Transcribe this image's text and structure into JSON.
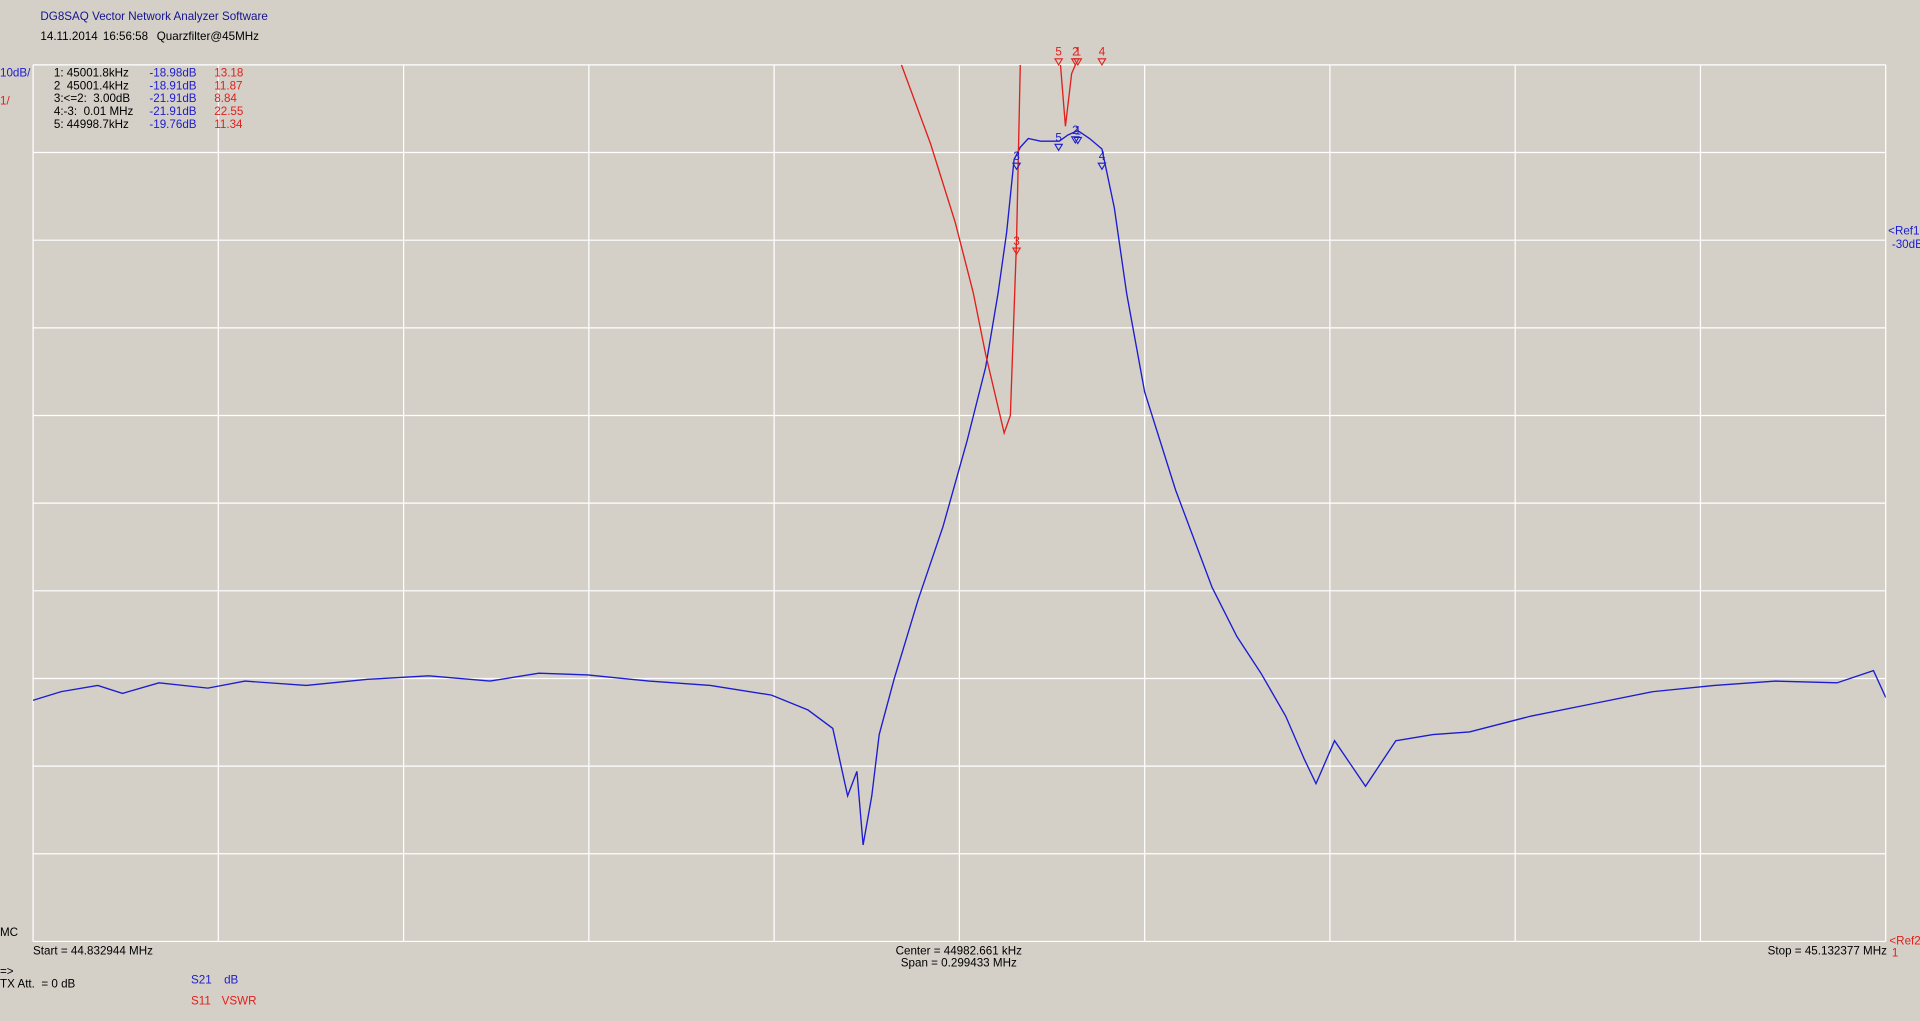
{
  "header": {
    "app_title": "DG8SAQ Vector Network Analyzer Software",
    "date": "14.11.2014",
    "time": "16:56:58",
    "name": "Quarzfilter@45MHz"
  },
  "chart_data": {
    "type": "line",
    "scale_labels": {
      "s21": "10dB/",
      "s11": "1/"
    },
    "ref1": {
      "label": "<Ref1",
      "value_label": "-30dB",
      "value": -30
    },
    "ref2": {
      "label": "<Ref2",
      "value_label": "1",
      "value": 1
    },
    "mc": "MC",
    "start_label": "Start = 44.832944 MHz",
    "center_label": "Center = 44982.661 kHz",
    "span_label": "Span = 0.299433 MHz",
    "stop_label": "Stop = 45.132377 MHz",
    "tx_arrow": "=>",
    "tx_att": "TX Att.  = 0 dB",
    "xlim": [
      44.832944,
      45.132377
    ],
    "xticks": [
      44.832944,
      44.862887,
      44.892831,
      44.922774,
      44.952717,
      44.982661,
      45.012604,
      45.042547,
      45.07249,
      45.102434,
      45.132377
    ],
    "ylim": [
      -110,
      -10
    ],
    "yticks": [
      -10,
      -20,
      -30,
      -40,
      -50,
      -60,
      -70,
      -80,
      -90,
      -100,
      -110
    ],
    "y2lim": [
      1,
      11
    ],
    "grid": true,
    "series": [
      {
        "name": "S21",
        "unit": "dB",
        "color": "#1c1cd0",
        "x": [
          44.8329,
          44.8375,
          44.8434,
          44.8474,
          44.8533,
          44.8612,
          44.8672,
          44.8771,
          44.887,
          44.8969,
          44.9068,
          44.9147,
          44.9226,
          44.9325,
          44.9424,
          44.9523,
          44.9582,
          44.9622,
          44.9646,
          44.9661,
          44.9671,
          44.9685,
          44.9697,
          44.9721,
          44.976,
          44.98,
          44.9839,
          44.9869,
          44.9889,
          44.9903,
          44.9915,
          44.9925,
          44.9938,
          44.9958,
          44.9988,
          45.0002,
          45.0018,
          45.0037,
          45.0057,
          45.0077,
          45.0097,
          45.0126,
          45.0176,
          45.0235,
          45.0275,
          45.0314,
          45.0354,
          45.0384,
          45.0403,
          45.0433,
          45.0483,
          45.0532,
          45.0592,
          45.0651,
          45.075,
          45.0849,
          45.0948,
          45.1047,
          45.1146,
          45.1245,
          45.1304,
          45.1324
        ],
        "values": [
          -82.5,
          -81.5,
          -80.8,
          -81.7,
          -80.5,
          -81.1,
          -80.3,
          -80.8,
          -80.1,
          -79.7,
          -80.3,
          -79.4,
          -79.6,
          -80.3,
          -80.8,
          -81.9,
          -83.6,
          -85.7,
          -93.4,
          -90.6,
          -99.0,
          -93.4,
          -86.4,
          -80.1,
          -71.0,
          -62.7,
          -52.9,
          -44.5,
          -36.1,
          -29.1,
          -20.8,
          -19.4,
          -18.4,
          -18.7,
          -18.7,
          -18.0,
          -17.5,
          -18.4,
          -19.6,
          -26.3,
          -36.1,
          -47.3,
          -58.5,
          -69.6,
          -75.2,
          -79.4,
          -84.3,
          -89.2,
          -92.0,
          -87.1,
          -92.3,
          -87.1,
          -86.4,
          -86.1,
          -84.3,
          -82.9,
          -81.5,
          -80.8,
          -80.3,
          -80.5,
          -79.1,
          -82.2
        ]
      },
      {
        "name": "S11",
        "unit": "VSWR",
        "color": "#e0201c",
        "axis": "y2",
        "x": [
          44.9733,
          44.978,
          44.982,
          44.9849,
          44.9869,
          44.9889,
          44.9899,
          44.9909,
          44.9919,
          44.9925,
          44.9958,
          44.999,
          44.9998,
          45.0008,
          45.0014
        ],
        "values": [
          11,
          10.1,
          9.2,
          8.4,
          7.7,
          7.1,
          6.8,
          7.0,
          9.0,
          11,
          null,
          11,
          10.3,
          10.9,
          11
        ]
      }
    ],
    "markers": [
      {
        "label": "1",
        "x": 45.0018,
        "s21": -18.98,
        "s11": 13.18
      },
      {
        "label": "2",
        "x": 45.0014,
        "s21": -18.91,
        "s11": 11.87
      },
      {
        "label": "3",
        "x": 44.9919,
        "s21": -21.91,
        "s11": 8.84
      },
      {
        "label": "4",
        "x": 45.0057,
        "s21": -21.91,
        "s11": 22.55
      },
      {
        "label": "5",
        "x": 44.9987,
        "s21": -19.76,
        "s11": 11.34
      }
    ],
    "marker_table": [
      {
        "freq": "1: 45001.8kHz",
        "s21": "-18.98dB",
        "s11": "13.18"
      },
      {
        "freq": "2  45001.4kHz",
        "s21": "-18.91dB",
        "s11": "11.87"
      },
      {
        "freq": "3:<=2:  3.00dB",
        "s21": "-21.91dB",
        "s11": "8.84"
      },
      {
        "freq": "4:-3:  0.01 MHz",
        "s21": "-21.91dB",
        "s11": "22.55"
      },
      {
        "freq": "5: 44998.7kHz",
        "s21": "-19.76dB",
        "s11": "11.34"
      }
    ]
  }
}
